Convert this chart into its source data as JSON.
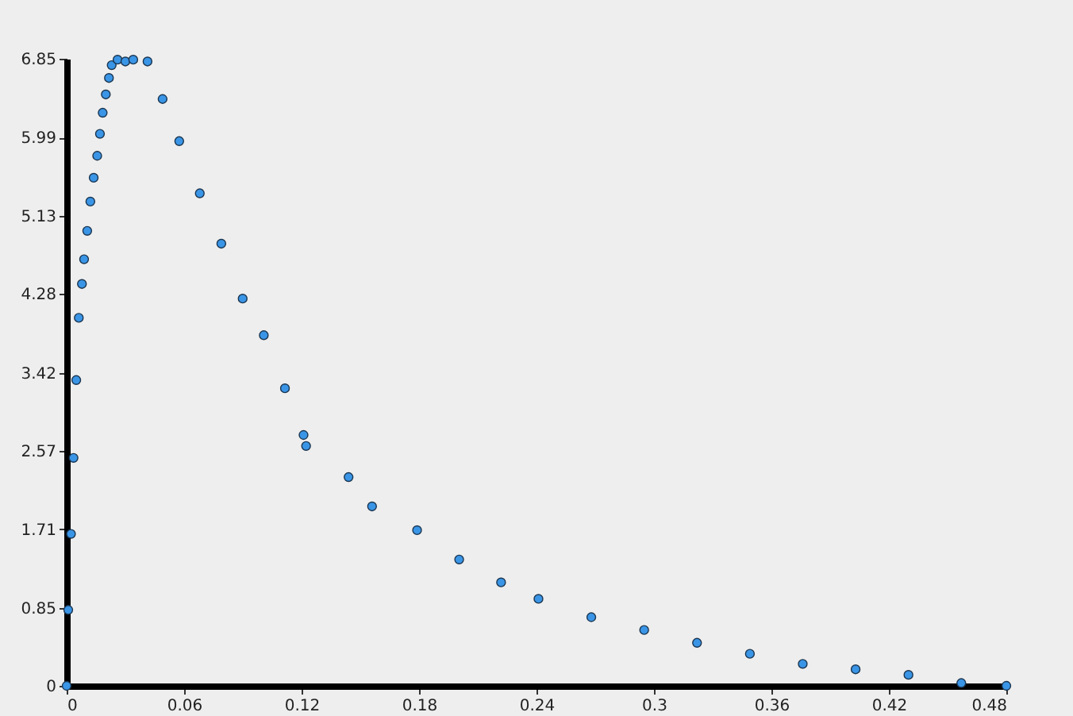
{
  "chart_data": {
    "type": "scatter",
    "marker": "circle",
    "grid": false,
    "x": [
      0,
      0.0008,
      0.0022,
      0.0035,
      0.0049,
      0.0062,
      0.0078,
      0.0089,
      0.0105,
      0.0121,
      0.0138,
      0.0156,
      0.017,
      0.0184,
      0.02,
      0.0216,
      0.023,
      0.026,
      0.03,
      0.034,
      0.0413,
      0.049,
      0.0575,
      0.068,
      0.079,
      0.0899,
      0.1007,
      0.1115,
      0.121,
      0.1223,
      0.144,
      0.156,
      0.179,
      0.2005,
      0.2219,
      0.241,
      0.268,
      0.295,
      0.322,
      0.349,
      0.376,
      0.403,
      0.43,
      0.457,
      0.48
    ],
    "series": [
      {
        "color": "#3a95e6",
        "values": [
          0,
          0.83,
          1.66,
          2.49,
          3.34,
          4.02,
          4.39,
          4.66,
          4.97,
          5.29,
          5.55,
          5.79,
          6.03,
          6.26,
          6.46,
          6.64,
          6.78,
          6.84,
          6.82,
          6.84,
          6.82,
          6.41,
          5.95,
          5.38,
          4.83,
          4.23,
          3.83,
          3.25,
          2.74,
          2.62,
          2.28,
          1.96,
          1.7,
          1.38,
          1.13,
          0.95,
          0.75,
          0.61,
          0.47,
          0.35,
          0.24,
          0.18,
          0.12,
          0.03,
          0
        ]
      }
    ],
    "xlim": [
      0,
      0.48
    ],
    "xticks": [
      0,
      0.06,
      0.12,
      0.18,
      0.24,
      0.3,
      0.36,
      0.42,
      0.48
    ],
    "ylim": [
      0,
      6.85
    ],
    "yticks": [
      0,
      0.85,
      1.71,
      2.57,
      3.42,
      4.28,
      5.13,
      5.99,
      6.85
    ]
  }
}
